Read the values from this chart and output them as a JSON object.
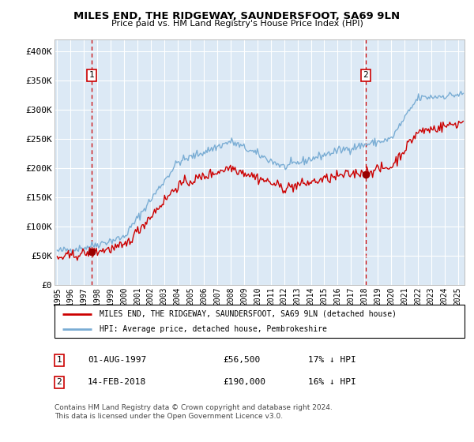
{
  "title": "MILES END, THE RIDGEWAY, SAUNDERSFOOT, SA69 9LN",
  "subtitle": "Price paid vs. HM Land Registry's House Price Index (HPI)",
  "bg_color": "#dce9f5",
  "hpi_color": "#7aadd4",
  "price_color": "#cc0000",
  "sale1_date": 1997.6,
  "sale1_price": 56500,
  "sale2_date": 2018.1,
  "sale2_price": 190000,
  "ylim": [
    0,
    420000
  ],
  "xlim_start": 1994.8,
  "xlim_end": 2025.5,
  "ytick_values": [
    0,
    50000,
    100000,
    150000,
    200000,
    250000,
    300000,
    350000,
    400000
  ],
  "ytick_labels": [
    "£0",
    "£50K",
    "£100K",
    "£150K",
    "£200K",
    "£250K",
    "£300K",
    "£350K",
    "£400K"
  ],
  "xtick_years": [
    1995,
    1996,
    1997,
    1998,
    1999,
    2000,
    2001,
    2002,
    2003,
    2004,
    2005,
    2006,
    2007,
    2008,
    2009,
    2010,
    2011,
    2012,
    2013,
    2014,
    2015,
    2016,
    2017,
    2018,
    2019,
    2020,
    2021,
    2022,
    2023,
    2024,
    2025
  ],
  "legend_line1": "MILES END, THE RIDGEWAY, SAUNDERSFOOT, SA69 9LN (detached house)",
  "legend_line2": "HPI: Average price, detached house, Pembrokeshire",
  "note1_label": "1",
  "note1_date": "01-AUG-1997",
  "note1_price": "£56,500",
  "note1_hpi": "17% ↓ HPI",
  "note2_label": "2",
  "note2_date": "14-FEB-2018",
  "note2_price": "£190,000",
  "note2_hpi": "16% ↓ HPI",
  "footer": "Contains HM Land Registry data © Crown copyright and database right 2024.\nThis data is licensed under the Open Government Licence v3.0."
}
